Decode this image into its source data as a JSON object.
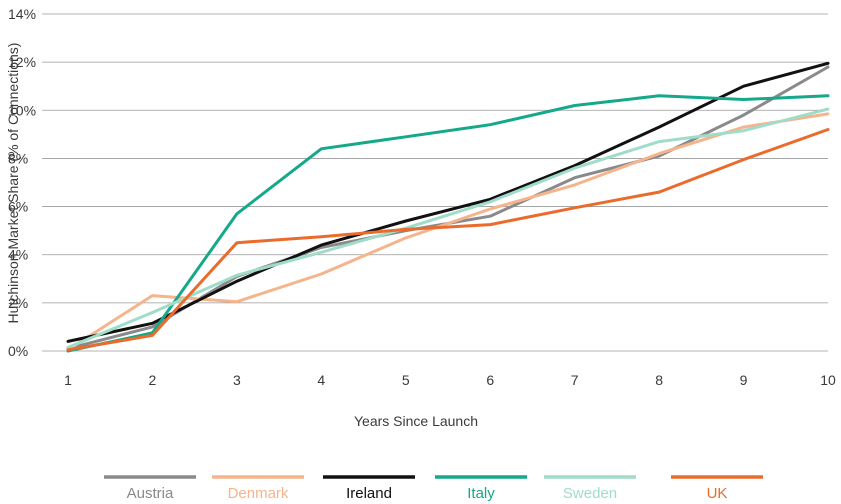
{
  "chart_data": {
    "type": "line",
    "xlabel": "Years Since Launch",
    "ylabel": "Hutchinson Market Share (% of Connections)",
    "x": [
      1,
      2,
      3,
      4,
      5,
      6,
      7,
      8,
      9,
      10
    ],
    "ylim": [
      0,
      14
    ],
    "yticks": [
      "0%",
      "2%",
      "4%",
      "6%",
      "8%",
      "10%",
      "12%",
      "14%"
    ],
    "ytick_values": [
      0,
      2,
      4,
      6,
      8,
      10,
      12,
      14
    ],
    "xticks": [
      "1",
      "2",
      "3",
      "4",
      "5",
      "6",
      "7",
      "8",
      "9",
      "10"
    ],
    "grid": true,
    "legend_position": "bottom",
    "series": [
      {
        "name": "Austria",
        "color": "#8a8a8c",
        "values": [
          0.1,
          1.0,
          3.1,
          4.3,
          5.0,
          5.6,
          7.2,
          8.1,
          9.8,
          11.8
        ]
      },
      {
        "name": "Denmark",
        "color": "#f5b48c",
        "values": [
          0.05,
          2.3,
          2.05,
          3.2,
          4.7,
          5.9,
          6.9,
          8.2,
          9.3,
          9.85
        ]
      },
      {
        "name": "Ireland",
        "color": "#111111",
        "values": [
          0.4,
          1.15,
          2.9,
          4.4,
          5.4,
          6.3,
          7.7,
          9.3,
          11.0,
          11.95
        ]
      },
      {
        "name": "Italy",
        "color": "#16a88a",
        "values": [
          0.0,
          0.75,
          5.7,
          8.4,
          8.9,
          9.4,
          10.2,
          10.6,
          10.45,
          10.6
        ]
      },
      {
        "name": "Sweden",
        "color": "#9fdcc9",
        "values": [
          0.15,
          1.6,
          3.15,
          4.1,
          5.1,
          6.2,
          7.6,
          8.7,
          9.15,
          10.05
        ]
      },
      {
        "name": "UK",
        "color": "#ea6b2b",
        "values": [
          0.05,
          0.65,
          4.5,
          4.75,
          5.05,
          5.25,
          5.95,
          6.6,
          7.95,
          9.2
        ]
      }
    ]
  }
}
